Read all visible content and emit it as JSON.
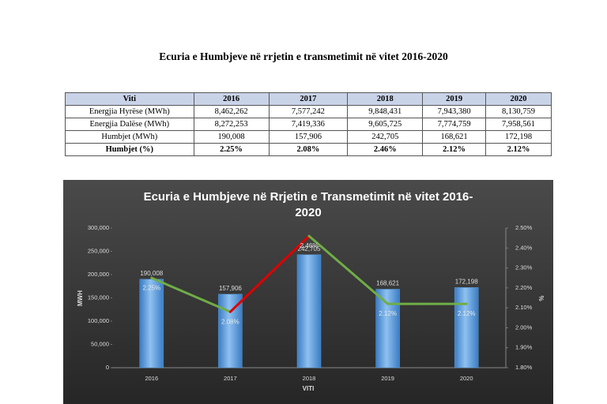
{
  "document": {
    "title": "Ecuria e Humbjeve në rrjetin e transmetimit në vitet 2016-2020",
    "table": {
      "header": [
        "Viti",
        "2016",
        "2017",
        "2018",
        "2019",
        "2020"
      ],
      "rows": [
        [
          "Energjia Hyrëse (MWh)",
          "8,462,262",
          "7,577,242",
          "9,848,431",
          "7,943,380",
          "8,130,759"
        ],
        [
          "Energjia Dalëse (MWh)",
          "8,272,253",
          "7,419,336",
          "9,605,725",
          "7,774,759",
          "7,958,561"
        ],
        [
          "Humbjet (MWh)",
          "190,008",
          "157,906",
          "242,705",
          "168,621",
          "172,198"
        ],
        [
          "Humbjet (%)",
          "2.25%",
          "2.08%",
          "2.46%",
          "2.12%",
          "2.12%"
        ]
      ]
    }
  },
  "chart_data": {
    "type": "bar",
    "title": "Ecuria e Humbjeve në Rrjetin e Transmetimit në vitet 2016-2020",
    "xlabel": "VITI",
    "ylabel": "MWH",
    "y2label": "%",
    "categories": [
      "2016",
      "2017",
      "2018",
      "2019",
      "2020"
    ],
    "series": [
      {
        "type": "bar",
        "color": "#5b9bd5",
        "values": [
          190008,
          157906,
          242705,
          168621,
          172198
        ],
        "value_labels": [
          "190,008",
          "157,906",
          "242,705",
          "168,621",
          "172,198"
        ]
      },
      {
        "type": "line",
        "axis": "y2",
        "color": "#70ad47",
        "segment_colors": [
          "#70ad47",
          "#e00000",
          "#70ad47",
          "#70ad47"
        ],
        "values": [
          2.25,
          2.08,
          2.46,
          2.12,
          2.12
        ],
        "value_labels": [
          "2.25%",
          "2.08%",
          "2.46%",
          "2.12%",
          "2.12%"
        ]
      }
    ],
    "ylim": [
      0,
      300000
    ],
    "yticks": [
      0,
      {
        "value": 50000,
        "label": "50,000"
      },
      {
        "value": 100000,
        "label": "100,000"
      },
      {
        "value": 150000,
        "label": "150,000"
      },
      {
        "value": 200000,
        "label": "200,000"
      },
      {
        "value": 250000,
        "label": "250,000"
      },
      {
        "value": 300000,
        "label": "300,000"
      }
    ],
    "y2lim": [
      1.8,
      2.5
    ],
    "y2ticks": [
      {
        "value": 1.8,
        "label": "1.80%"
      },
      {
        "value": 1.9,
        "label": "1.90%"
      },
      {
        "value": 2.0,
        "label": "2.00%"
      },
      {
        "value": 2.1,
        "label": "2.10%"
      },
      {
        "value": 2.2,
        "label": "2.20%"
      },
      {
        "value": 2.3,
        "label": "2.30%"
      },
      {
        "value": 2.4,
        "label": "2.40%"
      },
      {
        "value": 2.5,
        "label": "2.50%"
      }
    ],
    "grid": false
  }
}
